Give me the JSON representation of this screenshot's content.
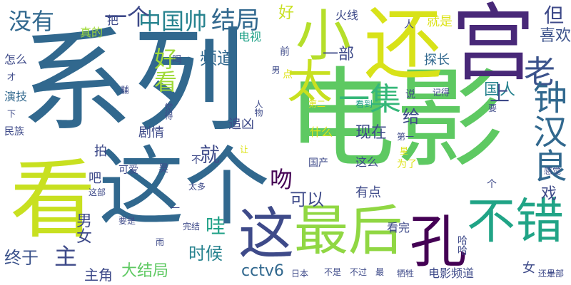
{
  "palette": [
    "#440154",
    "#46327e",
    "#365c8d",
    "#277f8e",
    "#1fa187",
    "#4ac16d",
    "#a0da39",
    "#fde725"
  ],
  "words": [
    {
      "text": "系列",
      "color": "#31688e"
    },
    {
      "text": "电影",
      "color": "#5ec962"
    },
    {
      "text": "这个",
      "color": "#31688e"
    },
    {
      "text": "看",
      "color": "#c8e020"
    },
    {
      "text": "还",
      "color": "#d8e219"
    },
    {
      "text": "宫",
      "color": "#482878"
    },
    {
      "text": "小",
      "color": "#b5de2b"
    },
    {
      "text": "最后",
      "color": "#90d743"
    },
    {
      "text": "不错",
      "color": "#20a486"
    },
    {
      "text": "这",
      "color": "#3e4a89"
    },
    {
      "text": "孔",
      "color": "#440154"
    },
    {
      "text": "太",
      "color": "#c8e020"
    },
    {
      "text": "老",
      "color": "#3b528b"
    },
    {
      "text": "钟汉良",
      "color": "#31688e"
    },
    {
      "text": "一集",
      "color": "#35b779"
    },
    {
      "text": "没有",
      "color": "#31688e"
    },
    {
      "text": "中国帅",
      "color": "#26828e"
    },
    {
      "text": "结局",
      "color": "#31688e"
    },
    {
      "text": "一个",
      "color": "#3e4a89"
    },
    {
      "text": "好",
      "color": "#c8e020"
    },
    {
      "text": "但",
      "color": "#3e4a89"
    },
    {
      "text": "喜欢",
      "color": "#3b528b"
    },
    {
      "text": "就是",
      "color": "#dde318"
    },
    {
      "text": "火线",
      "color": "#3e4a89"
    },
    {
      "text": "频道",
      "color": "#31688e"
    },
    {
      "text": "一部",
      "color": "#3e4a89"
    },
    {
      "text": "好看",
      "color": "#a0da39"
    },
    {
      "text": "探长",
      "color": "#31688e"
    },
    {
      "text": "国人",
      "color": "#26828e"
    },
    {
      "text": "上",
      "color": "#3e4a89"
    },
    {
      "text": "给",
      "color": "#3e4a89"
    },
    {
      "text": "剧情",
      "color": "#3e4a89"
    },
    {
      "text": "现在",
      "color": "#3e4a89"
    },
    {
      "text": "可以",
      "color": "#3e4a89"
    },
    {
      "text": "吻",
      "color": "#440154"
    },
    {
      "text": "哇",
      "color": "#1fa187"
    },
    {
      "text": "就",
      "color": "#3e4a89"
    },
    {
      "text": "终于",
      "color": "#3b528b"
    },
    {
      "text": "主",
      "color": "#3e4a89"
    },
    {
      "text": "时候",
      "color": "#26828e"
    },
    {
      "text": "主角",
      "color": "#3e4a89"
    },
    {
      "text": "大结局",
      "color": "#5ec962"
    },
    {
      "text": "cctv6",
      "color": "#31688e"
    },
    {
      "text": "电影频道",
      "color": "#3e4a89"
    },
    {
      "text": "男女",
      "color": "#3e4a89"
    },
    {
      "text": "戏",
      "color": "#3e4a89"
    },
    {
      "text": "有点",
      "color": "#3e4a89"
    },
    {
      "text": "什么",
      "color": "#dde318"
    },
    {
      "text": "这么",
      "color": "#3e4a89"
    },
    {
      "text": "怎么",
      "color": "#3e4a89"
    },
    {
      "text": "演技",
      "color": "#31688e"
    },
    {
      "text": "电视",
      "color": "#1fa187"
    },
    {
      "text": "真的",
      "color": "#a0da39"
    },
    {
      "text": "女",
      "color": "#3e4a89"
    },
    {
      "text": "拍",
      "color": "#3e4a89"
    },
    {
      "text": "吧",
      "color": "#3e4a89"
    },
    {
      "text": "追凶",
      "color": "#3e4a89"
    },
    {
      "text": "看完",
      "color": "#3e4a89"
    },
    {
      "text": "把",
      "color": "#3e4a89"
    },
    {
      "text": "人",
      "color": "#3e4a89"
    },
    {
      "text": "吗",
      "color": "#3e4a89"
    },
    {
      "text": "前",
      "color": "#3e4a89"
    },
    {
      "text": "男",
      "color": "#3e4a89"
    },
    {
      "text": "点",
      "color": "#dde318"
    },
    {
      "text": "记得",
      "color": "#3e4a89"
    },
    {
      "text": "说",
      "color": "#3e4a89"
    },
    {
      "text": "要",
      "color": "#3e4a89"
    },
    {
      "text": "看到",
      "color": "#1fa187"
    },
    {
      "text": "第二",
      "color": "#dde318"
    },
    {
      "text": "第一",
      "color": "#3e4a89"
    },
    {
      "text": "星",
      "color": "#dde318"
    },
    {
      "text": "为了",
      "color": "#dde318"
    },
    {
      "text": "感觉",
      "color": "#3e4a89"
    },
    {
      "text": "国产",
      "color": "#3e4a89"
    },
    {
      "text": "吴",
      "color": "#3e4a89"
    },
    {
      "text": "可爱",
      "color": "#3e4a89"
    },
    {
      "text": "觉得",
      "color": "#3e4a89"
    },
    {
      "text": "人物",
      "color": "#3e4a89"
    },
    {
      "text": "才",
      "color": "#3e4a89"
    },
    {
      "text": "下",
      "color": "#3e4a89"
    },
    {
      "text": "民族",
      "color": "#3e4a89"
    },
    {
      "text": "这部",
      "color": "#3e4a89"
    },
    {
      "text": "太多",
      "color": "#3e4a89"
    },
    {
      "text": "让",
      "color": "#dde318"
    },
    {
      "text": "一",
      "color": "#3e4a89"
    },
    {
      "text": "不",
      "color": "#3e4a89"
    },
    {
      "text": "要是",
      "color": "#3e4a89"
    },
    {
      "text": "雨",
      "color": "#3e4a89"
    },
    {
      "text": "完结",
      "color": "#3e4a89"
    },
    {
      "text": "日本",
      "color": "#3e4a89"
    },
    {
      "text": "不是",
      "color": "#3e4a89"
    },
    {
      "text": "不过",
      "color": "#3e4a89"
    },
    {
      "text": "最",
      "color": "#3e4a89"
    },
    {
      "text": "牺牲",
      "color": "#3e4a89"
    },
    {
      "text": "还是",
      "color": "#3e4a89"
    },
    {
      "text": "十部",
      "color": "#3e4a89"
    },
    {
      "text": "哈哈",
      "color": "#3e4a89"
    },
    {
      "text": "个",
      "color": "#3e4a89"
    },
    {
      "text": "黼",
      "color": "#3e4a89"
    }
  ]
}
